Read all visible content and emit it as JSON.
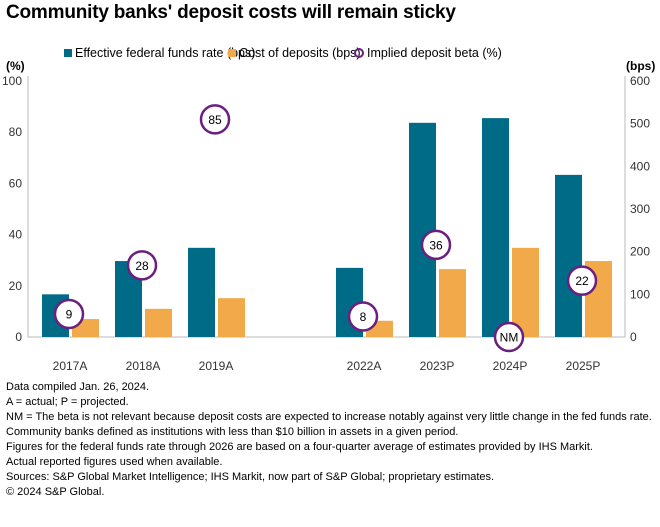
{
  "chart_data": {
    "type": "bar",
    "title": "Community banks' deposit costs will remain sticky",
    "categories": [
      "2017A",
      "2018A",
      "2019A",
      "2022A",
      "2023P",
      "2024P",
      "2025P"
    ],
    "series": [
      {
        "name": "Effective federal funds rate (bps)",
        "axis": "right",
        "color": "#006b86",
        "values": [
          100,
          178,
          209,
          162,
          502,
          513,
          380
        ]
      },
      {
        "name": "Cost of deposits (bps)",
        "axis": "right",
        "color": "#f2a94a",
        "values": [
          42,
          66,
          91,
          38,
          159,
          209,
          178
        ]
      }
    ],
    "beta": {
      "name": "Implied deposit beta (%)",
      "axis": "left",
      "color": "#6b1f7e",
      "values": [
        9,
        28,
        85,
        8,
        36,
        0,
        22
      ],
      "labels": [
        "9",
        "28",
        "85",
        "8",
        "36",
        "NM",
        "22"
      ]
    },
    "left_axis": {
      "label": "(%)",
      "range": [
        0,
        100
      ],
      "ticks": [
        "0",
        "20",
        "40",
        "60",
        "80",
        "100"
      ]
    },
    "right_axis": {
      "label": "(bps)",
      "range": [
        0,
        600
      ],
      "ticks": [
        "0",
        "100",
        "200",
        "300",
        "400",
        "500",
        "600"
      ]
    },
    "grid": false,
    "legend_placement": "top"
  },
  "notes": [
    "Data compiled Jan. 26, 2024.",
    "A = actual; P = projected.",
    "NM = The beta is not relevant because deposit costs are expected to increase notably against very little change in the fed funds rate.",
    "Community banks defined as institutions with less than $10 billion in assets in a given period.",
    "Figures for the federal funds rate through 2026 are based on a four-quarter average of estimates provided by IHS Markit.",
    "Actual reported figures used when available.",
    "Sources: S&P Global Market Intelligence; IHS Markit, now part of S&P Global; proprietary estimates.",
    "© 2024 S&P Global."
  ]
}
